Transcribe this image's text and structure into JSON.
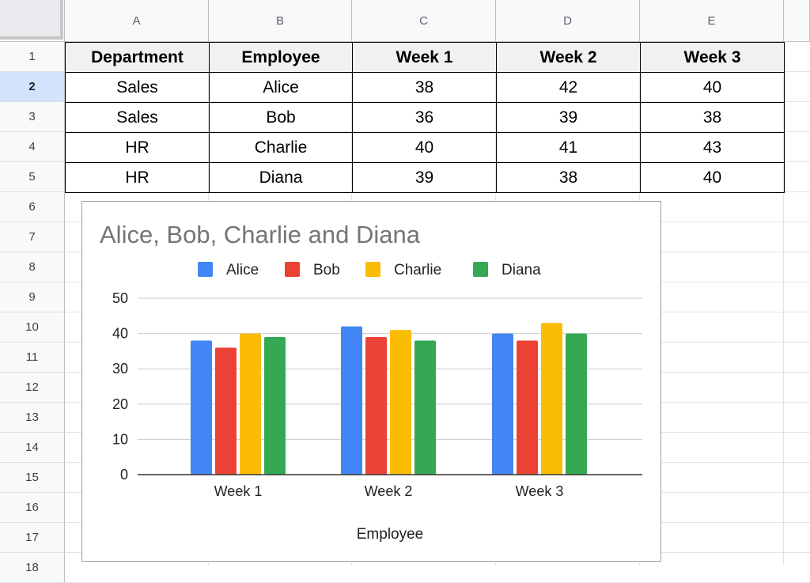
{
  "spreadsheet": {
    "column_headers": [
      "A",
      "B",
      "C",
      "D",
      "E"
    ],
    "row_headers": [
      "1",
      "2",
      "3",
      "4",
      "5",
      "6",
      "7",
      "8",
      "9",
      "10",
      "11",
      "12",
      "13",
      "14",
      "15",
      "16",
      "17",
      "18"
    ],
    "selected_row": "2",
    "table": {
      "headers": [
        "Department",
        "Employee",
        "Week 1",
        "Week 2",
        "Week 3"
      ],
      "rows": [
        [
          "Sales",
          "Alice",
          "38",
          "42",
          "40"
        ],
        [
          "Sales",
          "Bob",
          "36",
          "39",
          "38"
        ],
        [
          "HR",
          "Charlie",
          "40",
          "41",
          "43"
        ],
        [
          "HR",
          "Diana",
          "39",
          "38",
          "40"
        ]
      ]
    }
  },
  "chart_data": {
    "type": "bar",
    "title": "Alice, Bob, Charlie and Diana",
    "categories": [
      "Week 1",
      "Week 2",
      "Week 3"
    ],
    "series": [
      {
        "name": "Alice",
        "color": "#4285f4",
        "values": [
          38,
          42,
          40
        ]
      },
      {
        "name": "Bob",
        "color": "#ea4335",
        "values": [
          36,
          39,
          38
        ]
      },
      {
        "name": "Charlie",
        "color": "#fbbc04",
        "values": [
          40,
          41,
          43
        ]
      },
      {
        "name": "Diana",
        "color": "#34a853",
        "values": [
          39,
          38,
          40
        ]
      }
    ],
    "xlabel": "Employee",
    "ylabel": "",
    "ylim": [
      0,
      50
    ],
    "yticks": [
      "0",
      "10",
      "20",
      "30",
      "40",
      "50"
    ],
    "grid": true,
    "legend_position": "top"
  }
}
